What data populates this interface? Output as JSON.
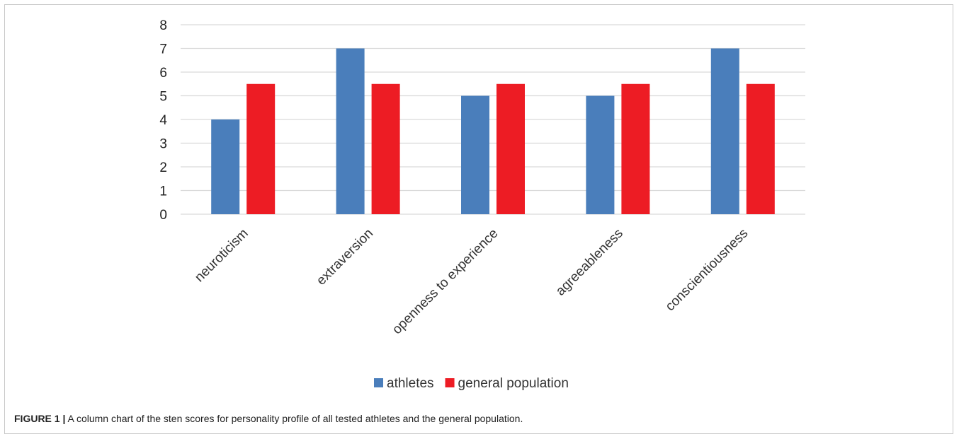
{
  "chart_data": {
    "type": "bar",
    "categories": [
      "neuroticism",
      "extraversion",
      "openness to experience",
      "agreeableness",
      "conscientiousness"
    ],
    "series": [
      {
        "name": "athletes",
        "values": [
          4,
          7,
          5,
          5,
          7
        ],
        "color": "#4a7ebb"
      },
      {
        "name": "general population",
        "values": [
          5.5,
          5.5,
          5.5,
          5.5,
          5.5
        ],
        "color": "#ed1c24"
      }
    ],
    "yticks": [
      0,
      1,
      2,
      3,
      4,
      5,
      6,
      7,
      8
    ],
    "ylim": [
      0,
      8
    ],
    "grid": true,
    "legend_position": "bottom"
  },
  "caption": {
    "label": "FIGURE 1  |",
    "text": "A column chart of the sten scores for personality profile of all tested athletes and the general population."
  }
}
